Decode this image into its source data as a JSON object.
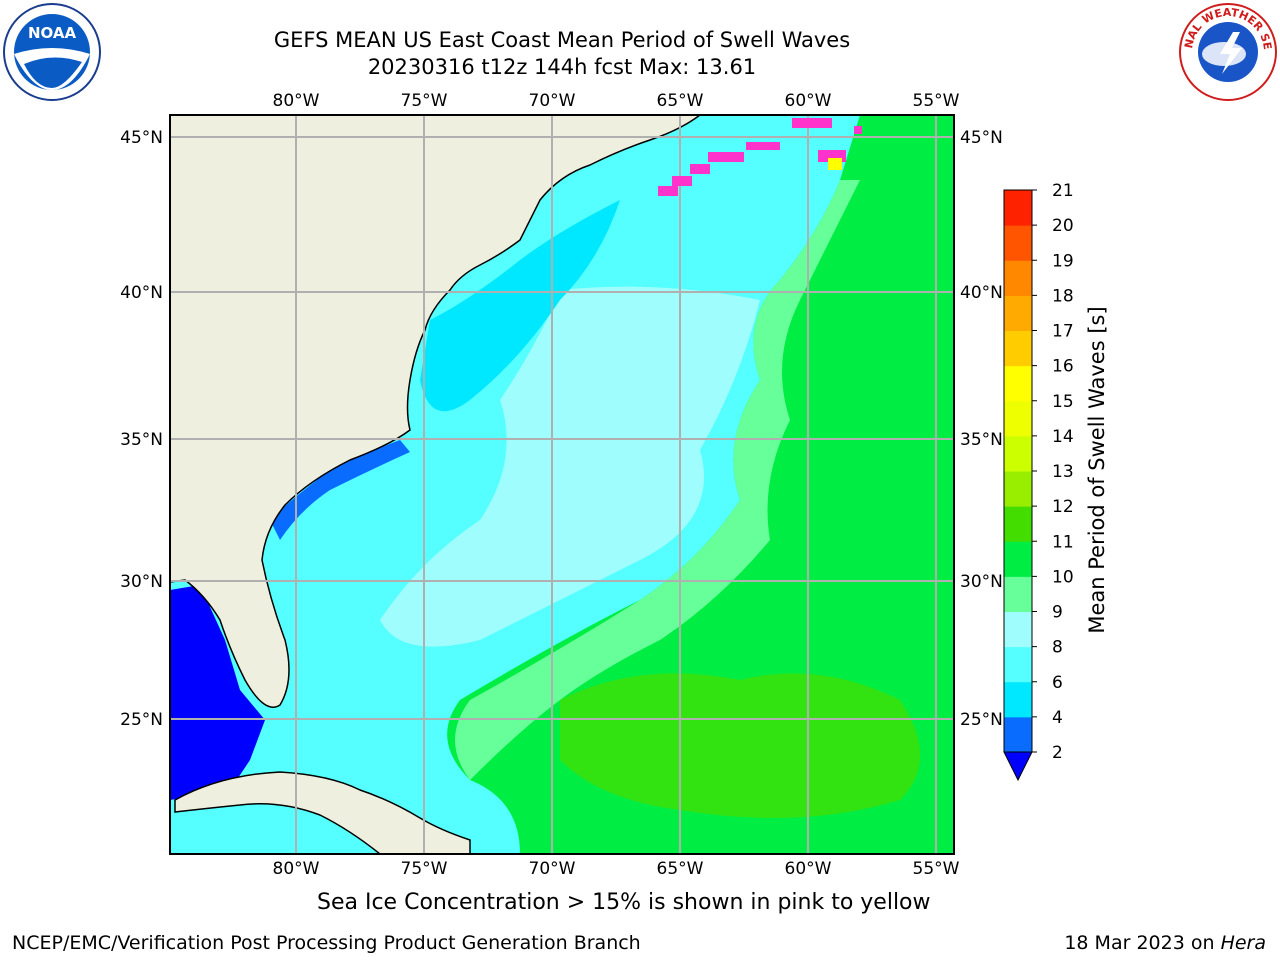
{
  "title_line1": "GEFS MEAN US East Coast Mean Period of Swell Waves",
  "title_line2": "20230316 t12z 144h fcst   Max: 13.61",
  "lon_ticks": [
    "80°W",
    "75°W",
    "70°W",
    "65°W",
    "60°W",
    "55°W"
  ],
  "lat_ticks": [
    "45°N",
    "40°N",
    "35°N",
    "30°N",
    "25°N"
  ],
  "colorbar": {
    "label": "Mean Period of Swell Waves [s]",
    "ticks": [
      "2",
      "4",
      "6",
      "8",
      "9",
      "10",
      "11",
      "12",
      "13",
      "14",
      "15",
      "16",
      "17",
      "18",
      "19",
      "20",
      "21"
    ],
    "colors": [
      "#0000ff",
      "#0a6bff",
      "#00e8ff",
      "#55ffff",
      "#9ffdfd",
      "#66ff99",
      "#00ee44",
      "#44dd00",
      "#99ee00",
      "#ccff00",
      "#eeff00",
      "#ffff00",
      "#ffcc00",
      "#ffaa00",
      "#ff8800",
      "#ff5500",
      "#ff2200",
      "#ff0000"
    ],
    "extend": "min"
  },
  "caption": "Sea Ice Concentration > 15% is shown in pink to yellow",
  "footer_left": "NCEP/EMC/Verification Post Processing Product Generation Branch",
  "footer_right_date": "18 Mar 2023 on",
  "footer_right_host": "Hera",
  "logos": {
    "left": "noaa-logo",
    "right": "nws-logo",
    "noaa_text": "NOAA",
    "nws_text": "NATIONAL WEATHER SERVICE"
  },
  "map_colors": {
    "land": "#efefdf",
    "grid": "#b0b0b0",
    "coast": "#000000",
    "ice": "#ff33cc"
  }
}
